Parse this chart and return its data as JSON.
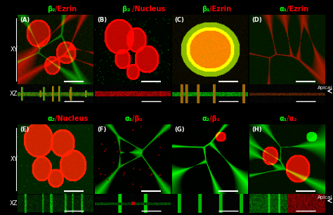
{
  "figure_width": 4.74,
  "figure_height": 3.06,
  "dpi": 100,
  "bg": "#000000",
  "green": "#00ff00",
  "red": "#ff0000",
  "white": "#ffffff",
  "top_titles": [
    [
      "β₂",
      "/Ezrin"
    ],
    [
      "β₂ ",
      "/Nucleus"
    ],
    [
      "β₁",
      "/Ezrin"
    ],
    [
      "α₁",
      "/Ezrin"
    ]
  ],
  "bottom_titles": [
    [
      "α₂",
      "/Nucleus"
    ],
    [
      "α₁",
      "/β₂"
    ],
    [
      "α₂",
      "/β₁"
    ],
    [
      "α₁",
      "/α₂"
    ]
  ],
  "top_panels": [
    "A",
    "B",
    "C",
    "D"
  ],
  "bottom_panels": [
    "E",
    "F",
    "G",
    "H"
  ],
  "title_fs": 7,
  "label_fs": 6,
  "rowlabel_fs": 6,
  "apical_fs": 5
}
